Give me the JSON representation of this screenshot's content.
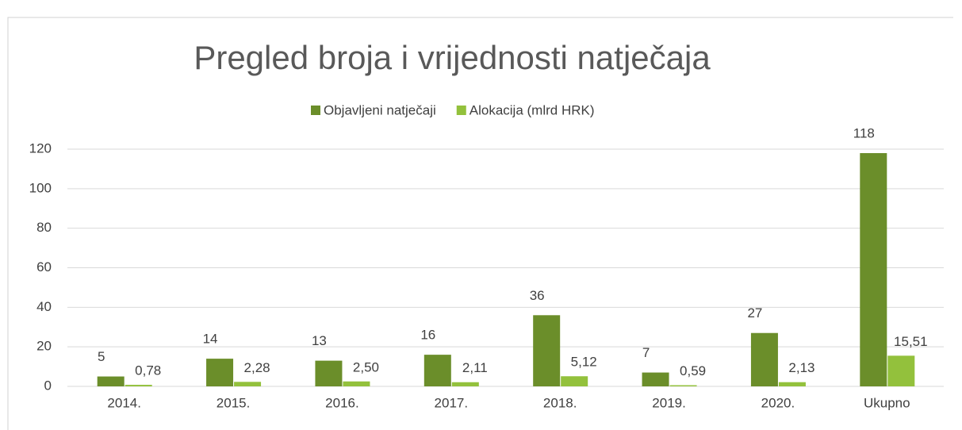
{
  "chart_data": {
    "type": "bar",
    "title": "Pregled broja i vrijednosti natječaja",
    "categories": [
      "2014.",
      "2015.",
      "2016.",
      "2017.",
      "2018.",
      "2019.",
      "2020.",
      "Ukupno"
    ],
    "series": [
      {
        "name": "Objavljeni natječaji",
        "color": "#6b8e2a",
        "values": [
          5,
          14,
          13,
          16,
          36,
          7,
          27,
          118
        ]
      },
      {
        "name": "Alokacija (mlrd HRK)",
        "color": "#93c13c",
        "values": [
          0.78,
          2.28,
          2.5,
          2.11,
          5.12,
          0.59,
          2.13,
          15.51
        ],
        "value_labels": [
          "0,78",
          "2,28",
          "2,50",
          "2,11",
          "5,12",
          "0,59",
          "2,13",
          "15,51"
        ]
      }
    ],
    "ylim": [
      0,
      120
    ],
    "yticks": [
      0,
      20,
      40,
      60,
      80,
      100,
      120
    ],
    "grid": true,
    "legend": "top"
  }
}
